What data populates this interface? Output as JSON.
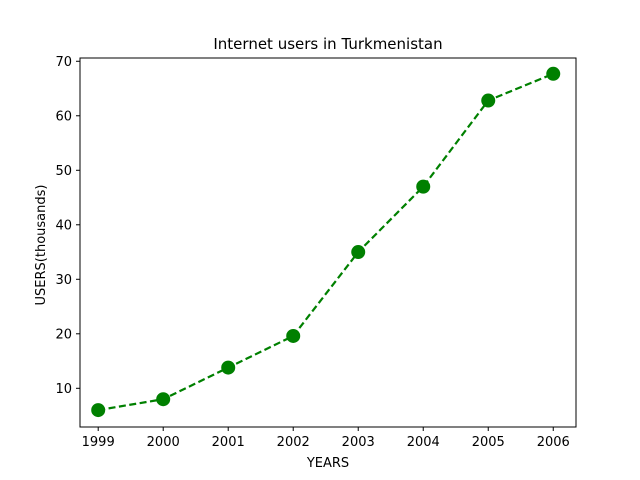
{
  "chart_data": {
    "type": "line",
    "title": "Internet users in Turkmenistan",
    "xlabel": "YEARS",
    "ylabel": "USERS(thousands)",
    "x": [
      "1999",
      "2000",
      "2001",
      "2002",
      "2003",
      "2004",
      "2005",
      "2006"
    ],
    "series": [
      {
        "values": [
          6,
          8,
          13.8,
          19.6,
          35,
          47,
          62.8,
          67.7
        ]
      }
    ],
    "xlim": [
      1998.72,
      2006.35
    ],
    "ylim": [
      2.9,
      70.6
    ],
    "yticks": [
      "10",
      "20",
      "30",
      "40",
      "50",
      "60",
      "70"
    ],
    "line_style": "dashed",
    "marker": "circle",
    "color": "#008000",
    "grid": false,
    "legend": "none"
  }
}
